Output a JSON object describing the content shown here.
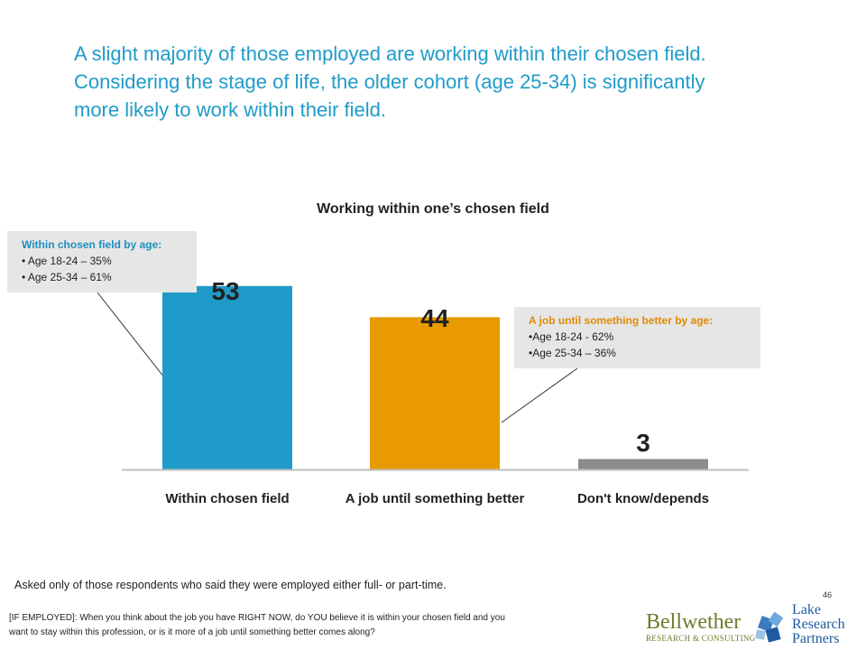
{
  "headline": {
    "line1": "A slight majority of those employed are working within their chosen field.",
    "line2": "Considering the stage of life, the older cohort (age 25-34) is significantly",
    "line3": "more likely to work within their field."
  },
  "chart_data": {
    "type": "bar",
    "title": "Working within one’s chosen field",
    "categories": [
      "Within chosen field",
      "A job until something better",
      "Don't know/depends"
    ],
    "values": [
      53,
      44,
      3
    ],
    "data_labels": [
      "53",
      "44",
      "3"
    ],
    "colors": [
      "#1f9bc9",
      "#e89a00",
      "#8c8c8c"
    ],
    "ylim": [
      0,
      60
    ],
    "grid": false,
    "legend": "none"
  },
  "callouts": {
    "left": {
      "title": "Within chosen field by age:",
      "lines": [
        "• Age 18-24 – 35%",
        "• Age 25-34 – 61%"
      ]
    },
    "right": {
      "title": "A job until something better by age:",
      "lines": [
        "•Age 18-24  - 62%",
        "•Age 25-34 – 36%"
      ]
    }
  },
  "note": "Asked only of those respondents who said they were employed either full- or part-time.",
  "page_number": "46",
  "question": {
    "line1": "[IF EMPLOYED]: When you think about the job you have RIGHT NOW, do YOU believe it is within your chosen field and you",
    "line2": "want to stay within this profession, or is it more of a job until something better comes along?"
  },
  "logos": {
    "bellwether_name": "Bellwether",
    "bellwether_sub": "RESEARCH & CONSULTING",
    "lake_lines": [
      "Lake",
      "Research",
      "Partners"
    ]
  }
}
